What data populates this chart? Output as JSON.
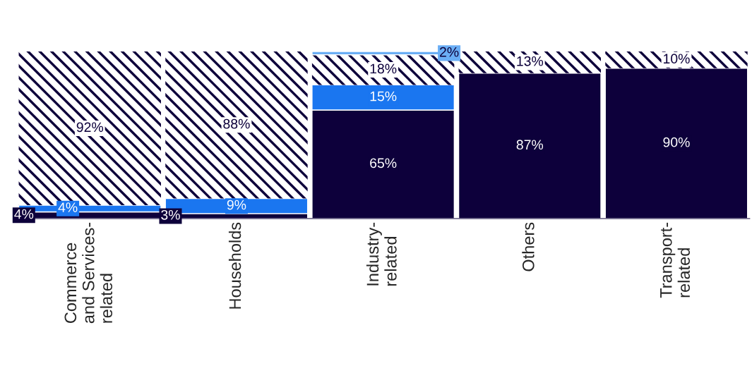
{
  "chart_data": {
    "type": "bar",
    "stacked": true,
    "categories": [
      "Commerce\nand Services-\nrelated",
      "Households",
      "Industry-\nrelated",
      "Others",
      "Transport-\nrelated"
    ],
    "series": [
      {
        "color": "#0d003b",
        "values": [
          4,
          3,
          65,
          87,
          90
        ],
        "value_labels": [
          "4%",
          "3%",
          "65%",
          "87%",
          "90%"
        ]
      },
      {
        "color": "#1a76f0",
        "values": [
          4,
          9,
          15,
          null,
          null
        ],
        "value_labels": [
          "4%",
          "9%",
          "15%",
          null,
          null
        ]
      },
      {
        "color": "#ffffff",
        "values": [
          92,
          88,
          18,
          13,
          10
        ],
        "value_labels": [
          "92%",
          "88%",
          "18%",
          "13%",
          "10%"
        ]
      },
      {
        "color": "#6aaef5",
        "values": [
          null,
          null,
          2,
          null,
          null
        ],
        "value_labels": [
          null,
          null,
          "2%",
          null,
          null
        ]
      }
    ]
  }
}
